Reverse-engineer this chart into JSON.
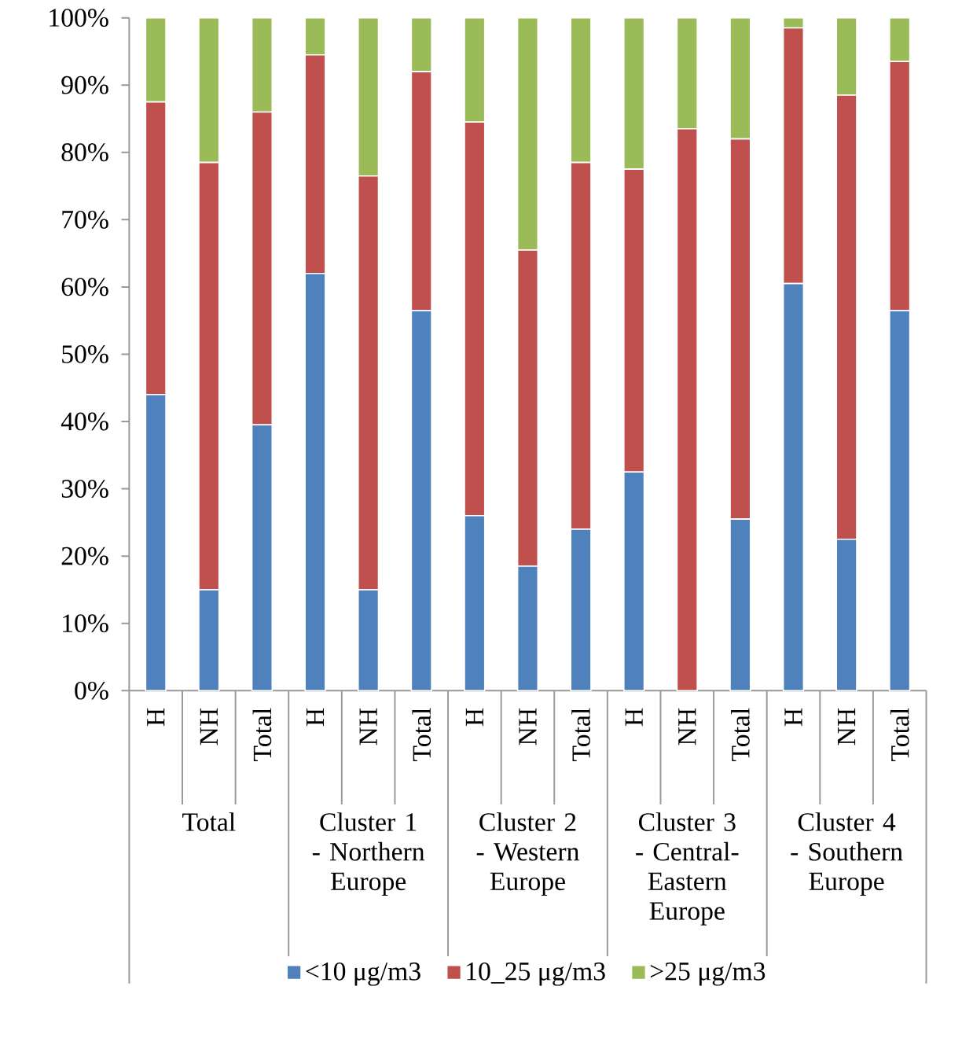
{
  "chart_data": {
    "type": "bar",
    "stacked": true,
    "categories": [
      "H",
      "NH",
      "Total",
      "H",
      "NH",
      "Total",
      "H",
      "NH",
      "Total",
      "H",
      "NH",
      "Total",
      "H",
      "NH",
      "Total"
    ],
    "annotations": [
      "Total",
      "Cluster 1 - Northern Europe",
      "Cluster 2 - Western Europe",
      "Cluster 3 - Central-Eastern Europe",
      "Cluster 4 - Southern Europe"
    ],
    "series": [
      {
        "name": "<10 μg/m3",
        "color": "#4f81bd",
        "values": [
          44,
          15,
          39.5,
          62,
          15,
          56.5,
          26,
          18.5,
          24,
          32.5,
          0,
          25.5,
          60.5,
          22.5,
          56.5
        ]
      },
      {
        "name": "10_25 μg/m3",
        "color": "#c0504d",
        "values": [
          43.5,
          63.5,
          46.5,
          32.5,
          61.5,
          35.5,
          58.5,
          47,
          54.5,
          45,
          83.5,
          56.5,
          38,
          66,
          37
        ]
      },
      {
        "name": ">25 μg/m3",
        "color": "#9bbb59",
        "values": [
          12.5,
          21.5,
          14,
          5.5,
          23.5,
          8,
          15.5,
          34.5,
          21.5,
          22.5,
          16.5,
          18,
          1.5,
          11.5,
          6.5
        ]
      }
    ],
    "ylim": [
      0,
      100
    ],
    "yticks": [
      {
        "value": 0,
        "label": "0%"
      },
      {
        "value": 10,
        "label": "10%"
      },
      {
        "value": 20,
        "label": "20%"
      },
      {
        "value": 30,
        "label": "30%"
      },
      {
        "value": 40,
        "label": "40%"
      },
      {
        "value": 50,
        "label": "50%"
      },
      {
        "value": 60,
        "label": "60%"
      },
      {
        "value": 70,
        "label": "70%"
      },
      {
        "value": 80,
        "label": "80%"
      },
      {
        "value": 90,
        "label": "90%"
      },
      {
        "value": 100,
        "label": "100%"
      }
    ],
    "legend": "bottom"
  }
}
